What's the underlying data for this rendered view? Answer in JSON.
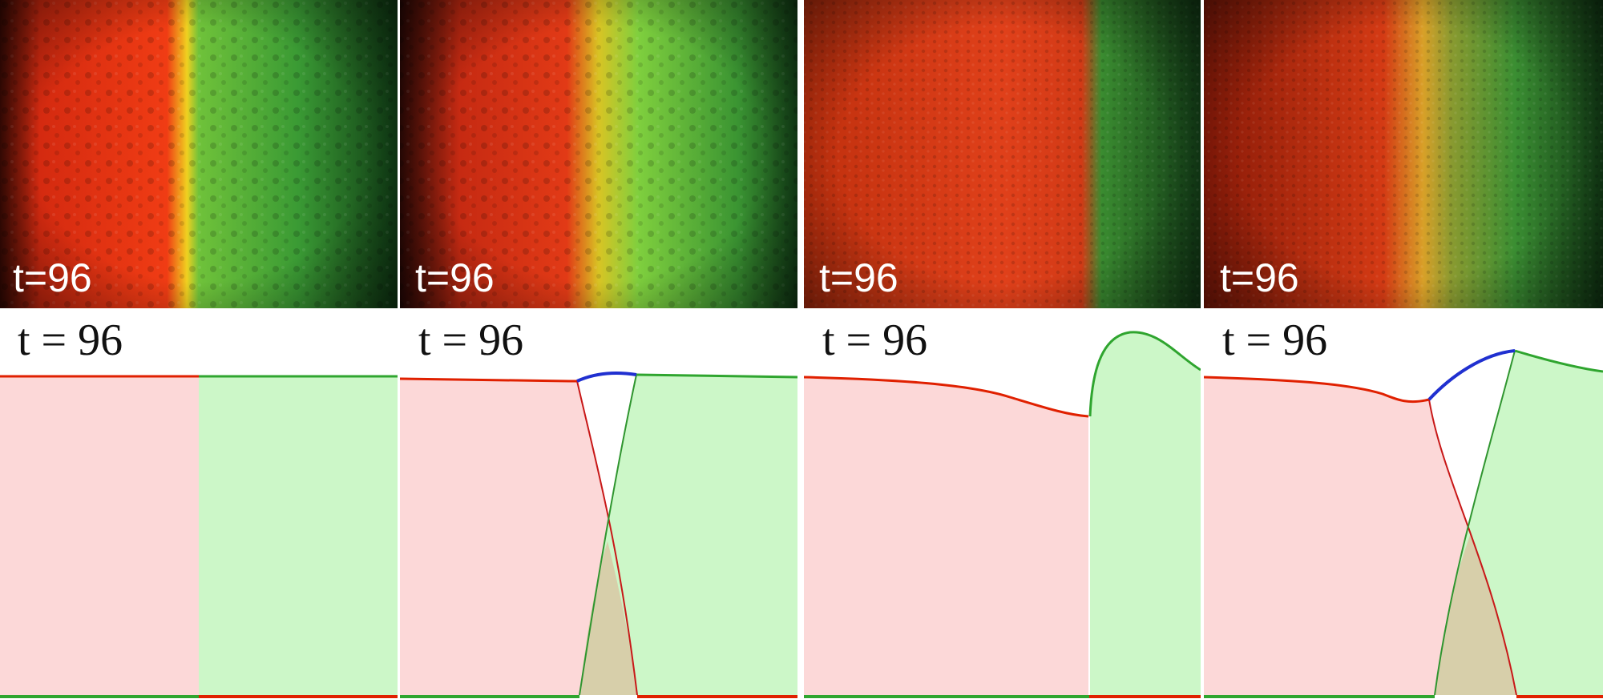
{
  "colors": {
    "red_population": "#e02000",
    "green_population": "#2fa52f",
    "overlap_curve": "#2030d0",
    "red_fill": "#fcd8d8",
    "green_fill": "#ccf7c8",
    "overlap_fill": "#d7cfaa",
    "divider": "#ffffff"
  },
  "micrographs": [
    {
      "label": "t=96"
    },
    {
      "label": "t=96"
    },
    {
      "label": "t=96"
    },
    {
      "label": "t=96"
    }
  ],
  "simulations": [
    {
      "label": "t = 96"
    },
    {
      "label": "t = 96"
    },
    {
      "label": "t = 96"
    },
    {
      "label": "t = 96"
    }
  ]
}
